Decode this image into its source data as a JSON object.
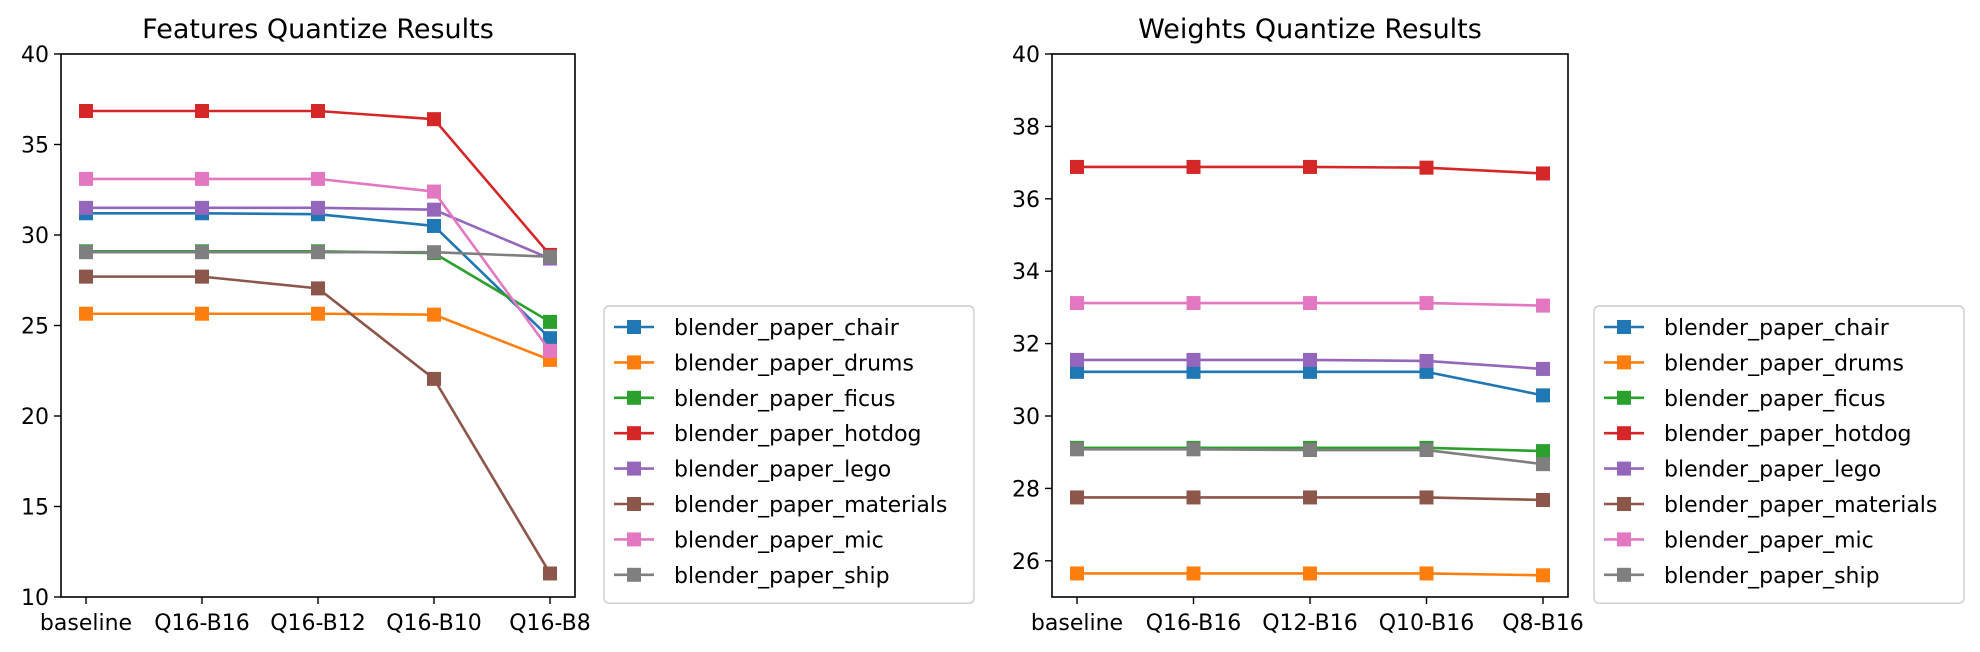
{
  "chart_data": [
    {
      "type": "line",
      "title": "Features Quantize Results",
      "xlabel": "",
      "ylabel": "",
      "categories": [
        "baseline",
        "Q16-B16",
        "Q16-B12",
        "Q16-B10",
        "Q16-B8"
      ],
      "ylim": [
        10,
        40
      ],
      "yticks": [
        10,
        15,
        20,
        25,
        30,
        35,
        40
      ],
      "grid": false,
      "legend_position": "outside-right-bottom",
      "series": [
        {
          "name": "blender_paper_chair",
          "color": "#1f77b4",
          "values": [
            31.2,
            31.2,
            31.15,
            30.5,
            24.3
          ]
        },
        {
          "name": "blender_paper_drums",
          "color": "#ff7f0e",
          "values": [
            25.65,
            25.65,
            25.65,
            25.6,
            23.1
          ]
        },
        {
          "name": "blender_paper_ficus",
          "color": "#2ca02c",
          "values": [
            29.1,
            29.1,
            29.1,
            29.0,
            25.2
          ]
        },
        {
          "name": "blender_paper_hotdog",
          "color": "#d62728",
          "values": [
            36.85,
            36.85,
            36.85,
            36.4,
            28.9
          ]
        },
        {
          "name": "blender_paper_lego",
          "color": "#9467bd",
          "values": [
            31.5,
            31.5,
            31.5,
            31.4,
            28.7
          ]
        },
        {
          "name": "blender_paper_materials",
          "color": "#8c564b",
          "values": [
            27.7,
            27.7,
            27.05,
            22.05,
            11.3
          ]
        },
        {
          "name": "blender_paper_mic",
          "color": "#e377c2",
          "values": [
            33.1,
            33.1,
            33.1,
            32.4,
            23.6
          ]
        },
        {
          "name": "blender_paper_ship",
          "color": "#7f7f7f",
          "values": [
            29.05,
            29.05,
            29.05,
            29.05,
            28.8
          ]
        }
      ]
    },
    {
      "type": "line",
      "title": "Weights Quantize Results",
      "xlabel": "",
      "ylabel": "",
      "categories": [
        "baseline",
        "Q16-B16",
        "Q12-B16",
        "Q10-B16",
        "Q8-B16"
      ],
      "ylim": [
        25,
        40
      ],
      "yticks": [
        26,
        28,
        30,
        32,
        34,
        36,
        38,
        40
      ],
      "grid": false,
      "legend_position": "outside-right-bottom",
      "series": [
        {
          "name": "blender_paper_chair",
          "color": "#1f77b4",
          "values": [
            31.22,
            31.22,
            31.22,
            31.22,
            30.57
          ]
        },
        {
          "name": "blender_paper_drums",
          "color": "#ff7f0e",
          "values": [
            25.65,
            25.65,
            25.65,
            25.65,
            25.6
          ]
        },
        {
          "name": "blender_paper_ficus",
          "color": "#2ca02c",
          "values": [
            29.12,
            29.12,
            29.12,
            29.12,
            29.03
          ]
        },
        {
          "name": "blender_paper_hotdog",
          "color": "#d62728",
          "values": [
            36.88,
            36.88,
            36.88,
            36.86,
            36.7
          ]
        },
        {
          "name": "blender_paper_lego",
          "color": "#9467bd",
          "values": [
            31.55,
            31.55,
            31.55,
            31.52,
            31.3
          ]
        },
        {
          "name": "blender_paper_materials",
          "color": "#8c564b",
          "values": [
            27.75,
            27.75,
            27.75,
            27.75,
            27.68
          ]
        },
        {
          "name": "blender_paper_mic",
          "color": "#e377c2",
          "values": [
            33.12,
            33.12,
            33.12,
            33.12,
            33.05
          ]
        },
        {
          "name": "blender_paper_ship",
          "color": "#7f7f7f",
          "values": [
            29.08,
            29.08,
            29.06,
            29.06,
            28.67
          ]
        }
      ]
    }
  ]
}
